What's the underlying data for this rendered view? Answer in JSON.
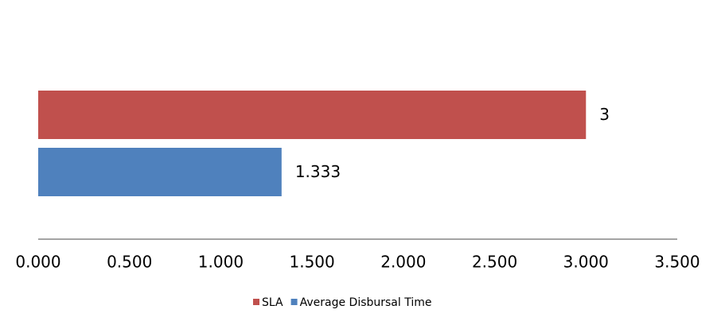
{
  "chart_data": {
    "type": "hbar",
    "categories": [
      null
    ],
    "series": [
      {
        "name": "SLA",
        "color": "#c0504d",
        "values": [
          3
        ]
      },
      {
        "name": "Average Disbursal Time",
        "color": "#4f81bd",
        "values": [
          1.333
        ]
      }
    ],
    "xlim": [
      0,
      3.5
    ],
    "xticks": [
      {
        "value": 0,
        "label": "0.000"
      },
      {
        "value": 0.5,
        "label": "0.500"
      },
      {
        "value": 1,
        "label": "1.000"
      },
      {
        "value": 1.5,
        "label": "1.500"
      },
      {
        "value": 2,
        "label": "2.000"
      },
      {
        "value": 2.5,
        "label": "2.500"
      },
      {
        "value": 3,
        "label": "3.000"
      },
      {
        "value": 3.5,
        "label": "3.500"
      }
    ],
    "legend": "bottom"
  }
}
